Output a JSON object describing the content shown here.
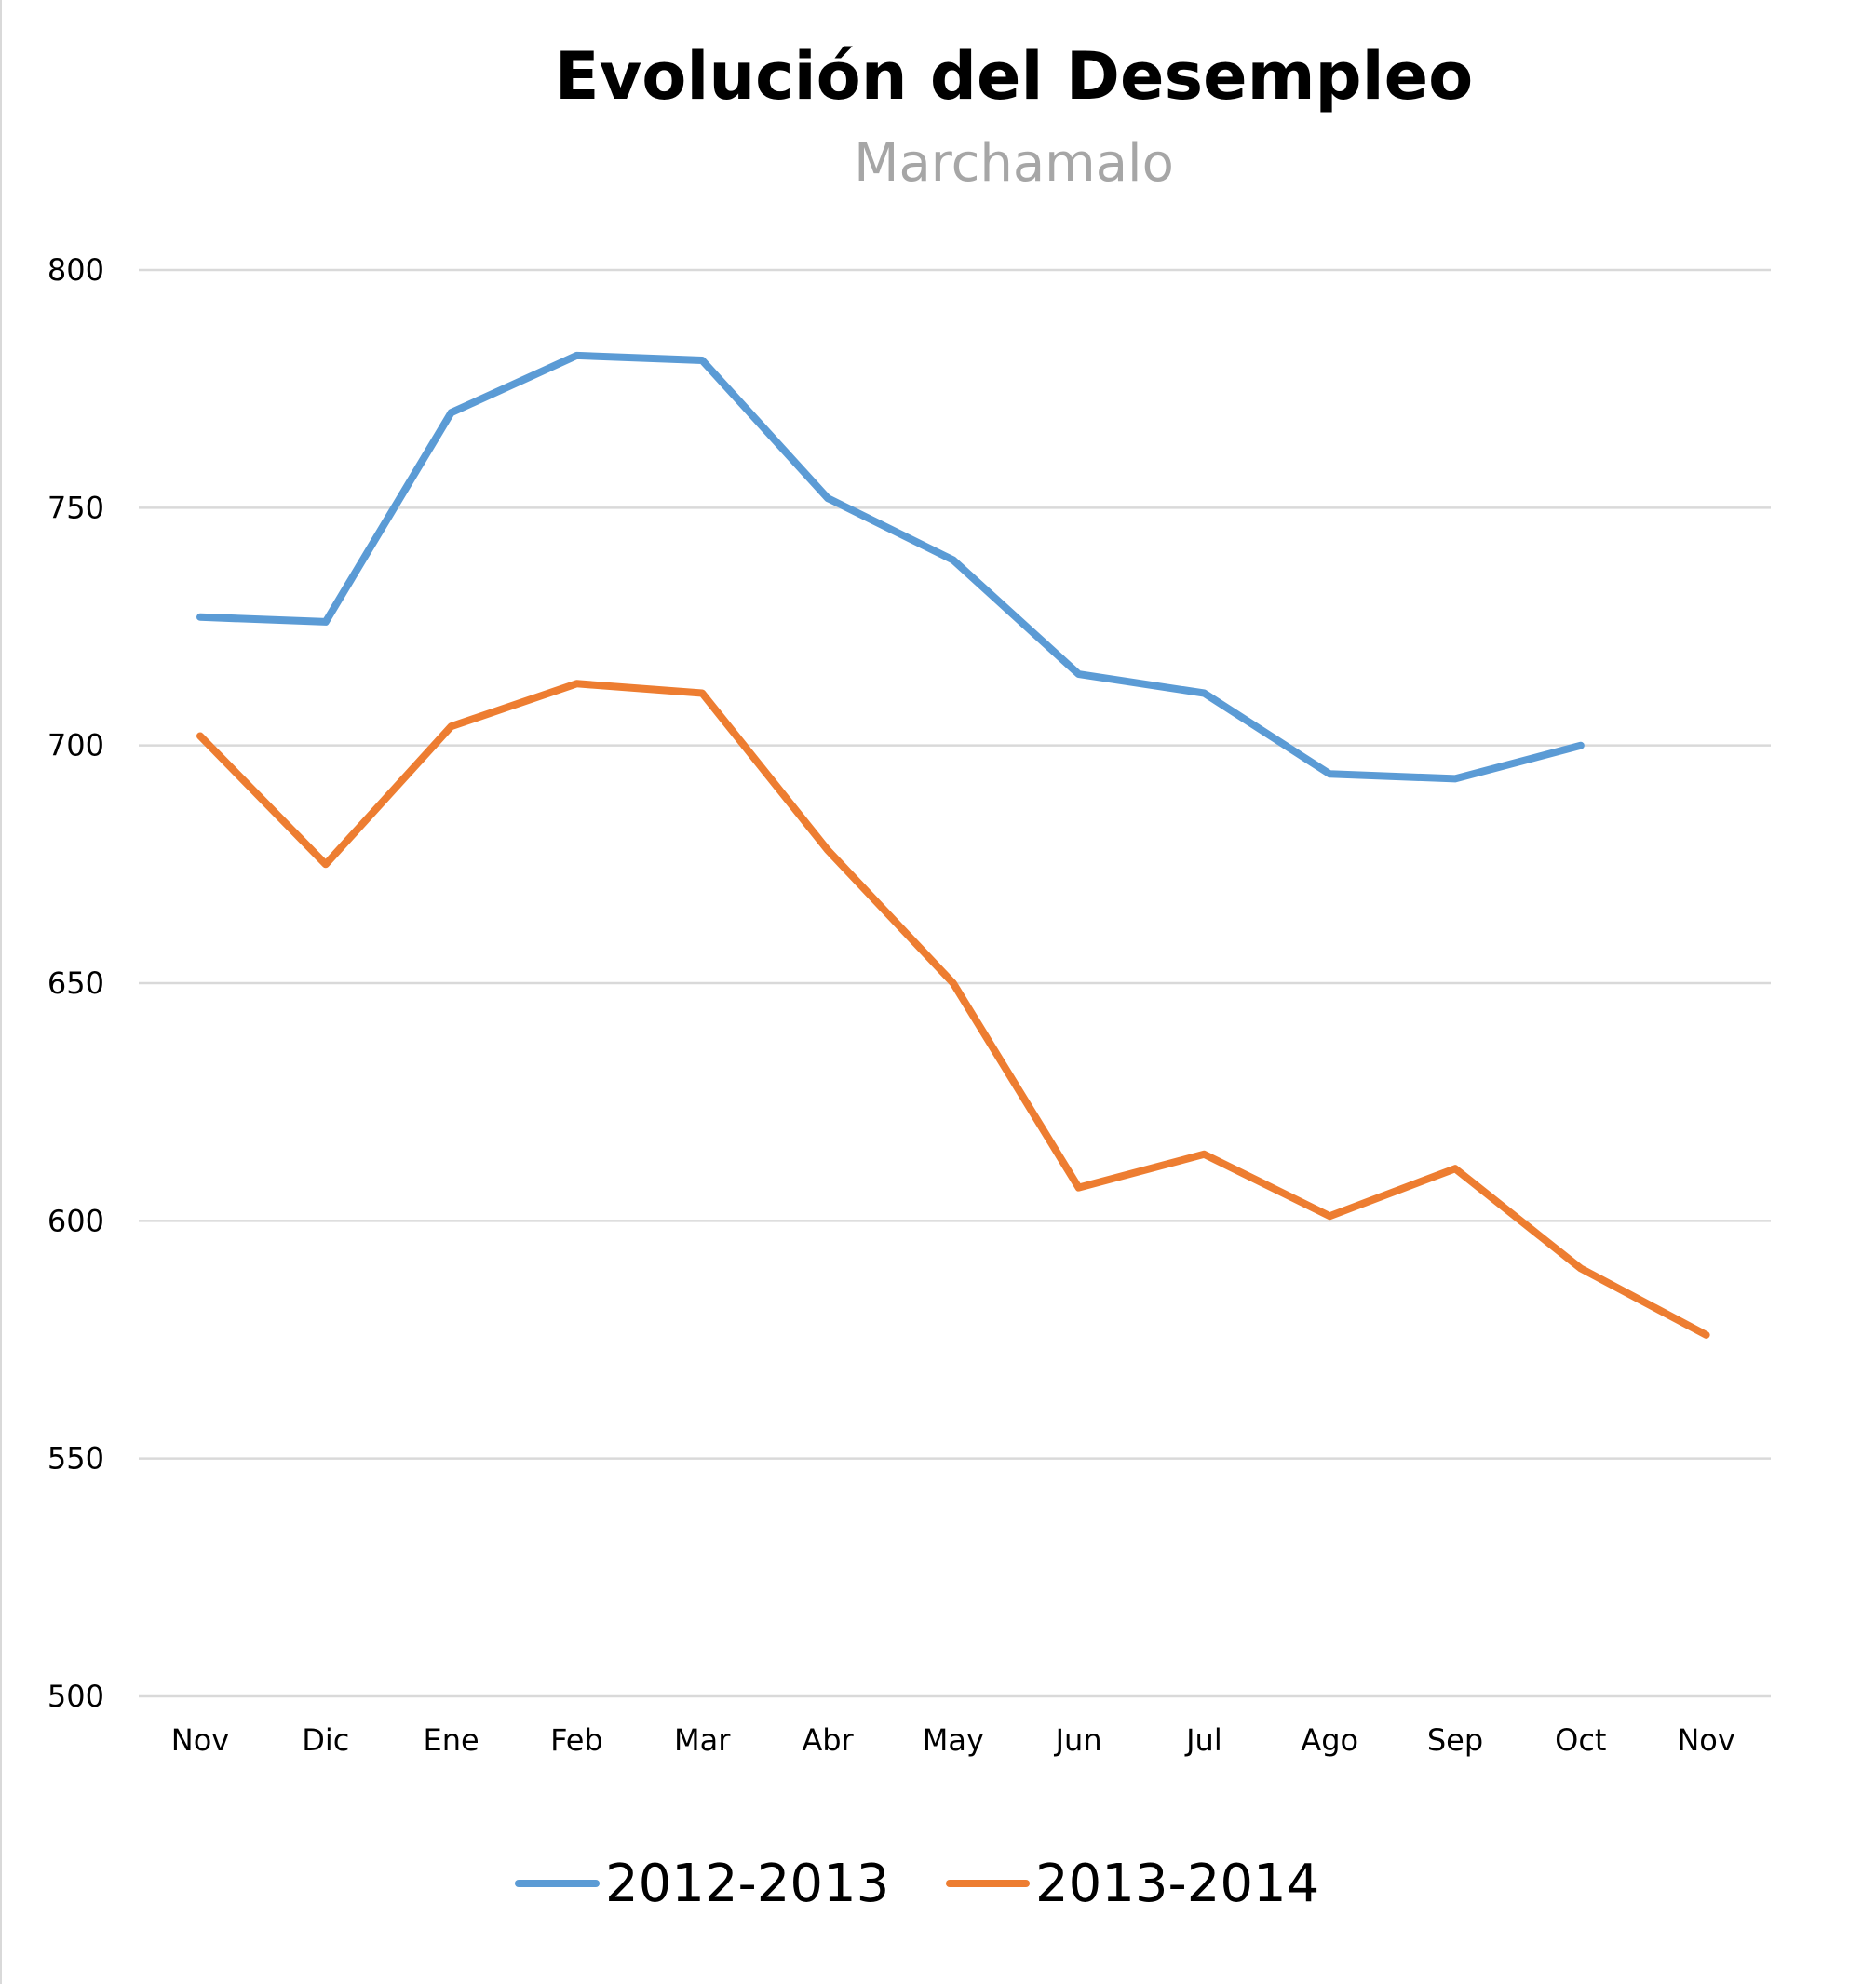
{
  "chart_data": {
    "type": "line",
    "title": "Evolución del Desempleo",
    "subtitle": "Marchamalo",
    "xlabel": "",
    "ylabel": "",
    "categories": [
      "Nov",
      "Dic",
      "Ene",
      "Feb",
      "Mar",
      "Abr",
      "May",
      "Jun",
      "Jul",
      "Ago",
      "Sep",
      "Oct",
      "Nov"
    ],
    "ylim": [
      500,
      800
    ],
    "yticks": [
      "500",
      "550",
      "600",
      "650",
      "700",
      "750",
      "800"
    ],
    "grid": true,
    "legend_position": "bottom",
    "series": [
      {
        "name": "2012-2013",
        "color": "#5b9bd5",
        "values": [
          727,
          726,
          770,
          782,
          781,
          752,
          739,
          715,
          711,
          694,
          693,
          700,
          null
        ]
      },
      {
        "name": "2013-2014",
        "color": "#ed7d31",
        "values": [
          702,
          675,
          704,
          713,
          711,
          678,
          650,
          607,
          614,
          601,
          611,
          590,
          576
        ]
      }
    ]
  }
}
